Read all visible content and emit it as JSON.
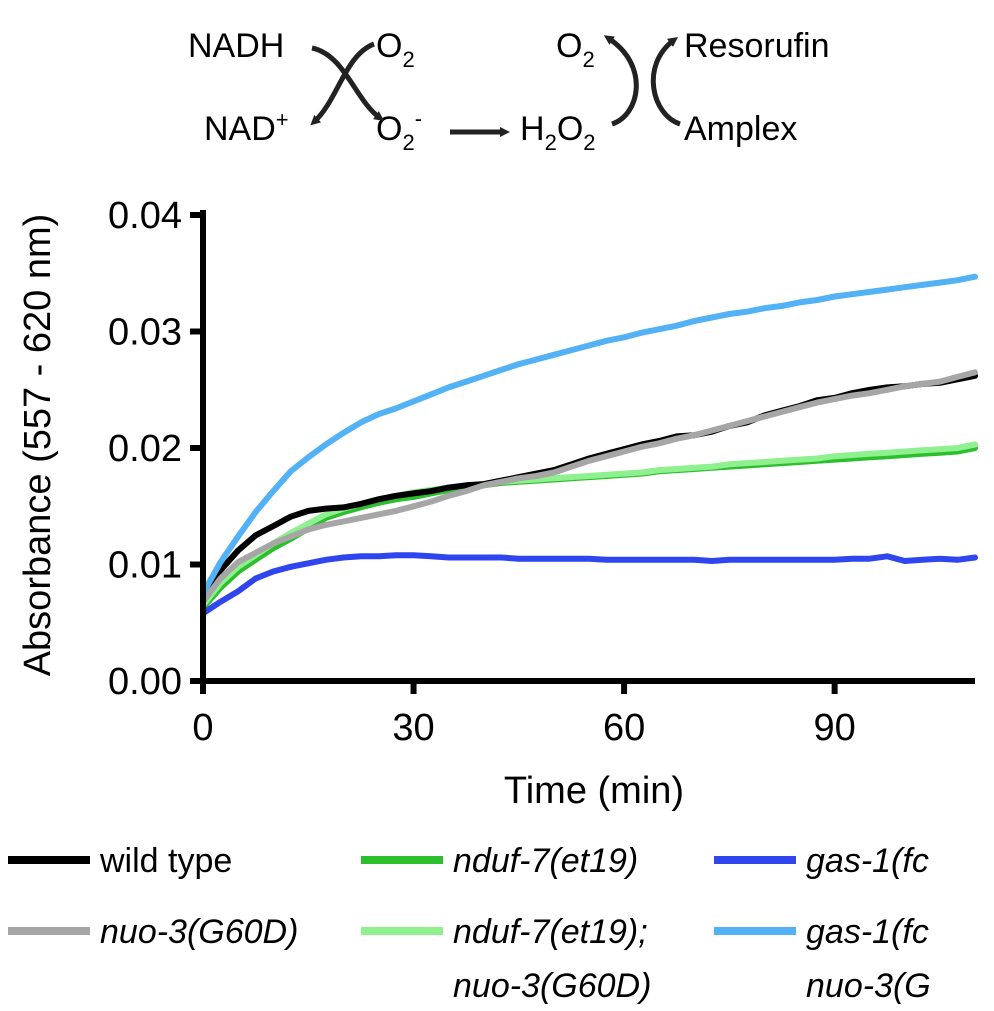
{
  "scheme": {
    "nadh": "NADH",
    "nad_base": "NAD",
    "nad_sup": "+",
    "o2_base": "O",
    "o2_sub": "2",
    "superoxide_sup": "-",
    "h_base": "H",
    "h_sub": "2",
    "h2o2_o": "O",
    "h2o2_sub": "2",
    "resorufin": "Resorufin",
    "amplex": "Amplex"
  },
  "chart_data": {
    "type": "line",
    "xlabel": "Time (min)",
    "ylabel": "Absorbance (557 - 620 nm)",
    "xlim": [
      0,
      110
    ],
    "ylim": [
      0,
      0.04
    ],
    "x_ticks": [
      0,
      30,
      60,
      90
    ],
    "x_tick_labels": [
      "0",
      "30",
      "60",
      "90"
    ],
    "y_ticks": [
      0,
      0.01,
      0.02,
      0.03,
      0.04
    ],
    "y_tick_labels": [
      "0.00",
      "0.01",
      "0.02",
      "0.03",
      "0.04"
    ],
    "grid": false,
    "legend_position": "bottom",
    "x": [
      0,
      2.5,
      5,
      7.5,
      10,
      12.5,
      15,
      17.5,
      20,
      22.5,
      25,
      27.5,
      30,
      32.5,
      35,
      37.5,
      40,
      42.5,
      45,
      47.5,
      50,
      52.5,
      55,
      57.5,
      60,
      62.5,
      65,
      67.5,
      70,
      72.5,
      75,
      77.5,
      80,
      82.5,
      85,
      87.5,
      90,
      92.5,
      95,
      97.5,
      100,
      102.5,
      105,
      107.5,
      110
    ],
    "series": [
      {
        "name": "wild type",
        "color": "#000000",
        "values": [
          0.0072,
          0.0095,
          0.0112,
          0.0125,
          0.0133,
          0.0141,
          0.0146,
          0.0148,
          0.0149,
          0.0152,
          0.0156,
          0.0159,
          0.0161,
          0.0163,
          0.0166,
          0.0168,
          0.0169,
          0.0172,
          0.0175,
          0.0178,
          0.0181,
          0.0186,
          0.0191,
          0.0195,
          0.0199,
          0.0203,
          0.0206,
          0.021,
          0.0211,
          0.0214,
          0.0219,
          0.0222,
          0.0228,
          0.0232,
          0.0236,
          0.0241,
          0.0243,
          0.0247,
          0.025,
          0.0252,
          0.0253,
          0.0255,
          0.0256,
          0.0259,
          0.0262
        ]
      },
      {
        "name": "nuo-3(G60D)",
        "color": "#a6a6a6",
        "values": [
          0.0068,
          0.0088,
          0.0102,
          0.011,
          0.0118,
          0.0124,
          0.013,
          0.0134,
          0.0137,
          0.014,
          0.0143,
          0.0146,
          0.015,
          0.0154,
          0.0159,
          0.0163,
          0.0168,
          0.0171,
          0.0174,
          0.0176,
          0.0179,
          0.0184,
          0.0189,
          0.0193,
          0.0197,
          0.0201,
          0.0204,
          0.0208,
          0.0211,
          0.0215,
          0.0219,
          0.0223,
          0.0227,
          0.0231,
          0.0235,
          0.0239,
          0.0242,
          0.0245,
          0.0247,
          0.025,
          0.0253,
          0.0255,
          0.0257,
          0.0261,
          0.0265
        ]
      },
      {
        "name": "nduf-7(et19)",
        "color": "#2cbf2c",
        "values": [
          0.0063,
          0.008,
          0.0094,
          0.0104,
          0.0114,
          0.0122,
          0.0131,
          0.014,
          0.0145,
          0.0149,
          0.0153,
          0.0156,
          0.0158,
          0.0161,
          0.0164,
          0.0166,
          0.0168,
          0.017,
          0.0171,
          0.0172,
          0.0173,
          0.0174,
          0.0175,
          0.0176,
          0.0177,
          0.0178,
          0.018,
          0.0181,
          0.0182,
          0.0183,
          0.0184,
          0.0185,
          0.0186,
          0.0187,
          0.0188,
          0.0189,
          0.019,
          0.0191,
          0.0192,
          0.0193,
          0.0194,
          0.0195,
          0.0196,
          0.0197,
          0.02
        ]
      },
      {
        "name": "nduf-7(et19); nuo-3(G60D)",
        "color": "#8ff08f",
        "values": [
          0.0065,
          0.0084,
          0.0098,
          0.0108,
          0.0118,
          0.0127,
          0.0135,
          0.0143,
          0.0148,
          0.0152,
          0.0156,
          0.0159,
          0.0162,
          0.0164,
          0.0166,
          0.0168,
          0.0169,
          0.0171,
          0.0172,
          0.0173,
          0.0174,
          0.0175,
          0.0176,
          0.0177,
          0.0178,
          0.0179,
          0.0181,
          0.0182,
          0.0183,
          0.0184,
          0.0186,
          0.0187,
          0.0188,
          0.0189,
          0.019,
          0.0191,
          0.0193,
          0.0194,
          0.0195,
          0.0196,
          0.0197,
          0.0198,
          0.0199,
          0.02,
          0.0203
        ]
      },
      {
        "name": "gas-1(fc",
        "color": "#2f45ee",
        "values": [
          0.0058,
          0.0068,
          0.0077,
          0.0088,
          0.0094,
          0.0098,
          0.0101,
          0.0104,
          0.0106,
          0.0107,
          0.0107,
          0.0108,
          0.0108,
          0.0107,
          0.0106,
          0.0106,
          0.0106,
          0.0106,
          0.0105,
          0.0105,
          0.0105,
          0.0105,
          0.0105,
          0.0104,
          0.0104,
          0.0104,
          0.0104,
          0.0104,
          0.0104,
          0.0103,
          0.0104,
          0.0104,
          0.0104,
          0.0104,
          0.0104,
          0.0104,
          0.0104,
          0.0105,
          0.0105,
          0.0107,
          0.0103,
          0.0104,
          0.0105,
          0.0104,
          0.0106
        ]
      },
      {
        "name": "gas-1(fc nuo-3(G",
        "color": "#52b2f5",
        "values": [
          0.0075,
          0.0102,
          0.0124,
          0.0145,
          0.0163,
          0.018,
          0.0192,
          0.0203,
          0.0213,
          0.0222,
          0.0229,
          0.0234,
          0.024,
          0.0246,
          0.0252,
          0.0257,
          0.0262,
          0.0267,
          0.0272,
          0.0276,
          0.028,
          0.0284,
          0.0288,
          0.0292,
          0.0295,
          0.0299,
          0.0302,
          0.0305,
          0.0309,
          0.0312,
          0.0315,
          0.0317,
          0.032,
          0.0322,
          0.0325,
          0.0327,
          0.033,
          0.0332,
          0.0334,
          0.0336,
          0.0338,
          0.034,
          0.0342,
          0.0344,
          0.0347
        ]
      }
    ],
    "legend": [
      {
        "lines": [
          "wild type"
        ],
        "italic": false,
        "color": "#000000"
      },
      {
        "lines": [
          "nduf-7(et19)"
        ],
        "italic": true,
        "color": "#2cbf2c"
      },
      {
        "lines": [
          "gas-1(fc"
        ],
        "italic": true,
        "color": "#2f45ee"
      },
      {
        "lines": [
          "nuo-3(G60D)"
        ],
        "italic": true,
        "color": "#a6a6a6"
      },
      {
        "lines": [
          "nduf-7(et19);",
          "nuo-3(G60D)"
        ],
        "italic": true,
        "color": "#8ff08f"
      },
      {
        "lines": [
          "gas-1(fc",
          "nuo-3(G"
        ],
        "italic": true,
        "color": "#52b2f5"
      }
    ]
  }
}
